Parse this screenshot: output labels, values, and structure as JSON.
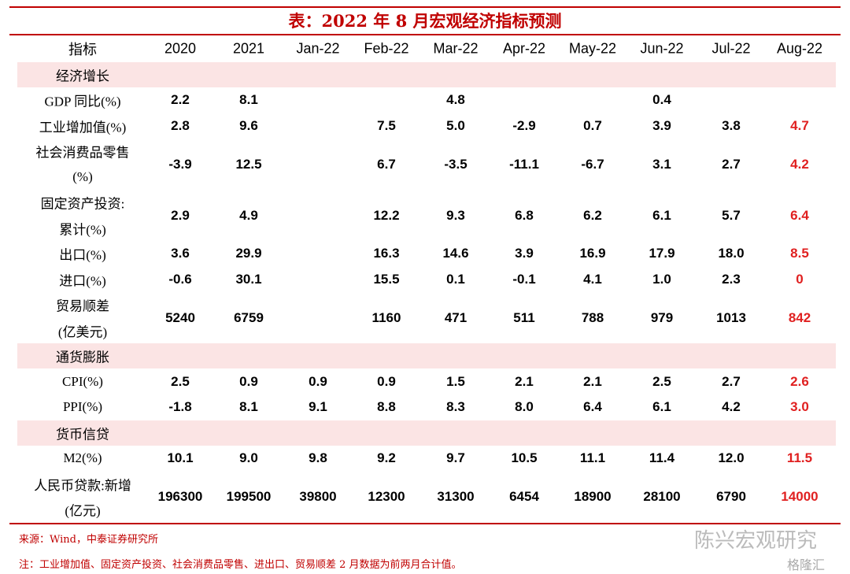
{
  "header": {
    "title": "表：2022 年 8 月宏观经济指标预测"
  },
  "table": {
    "columns": [
      "指标",
      "2020",
      "2021",
      "Jan-22",
      "Feb-22",
      "Mar-22",
      "Apr-22",
      "May-22",
      "Jun-22",
      "Jul-22",
      "Aug-22"
    ],
    "sections": [
      {
        "title": "经济增长",
        "rows": [
          {
            "label": [
              "GDP 同比(%)"
            ],
            "values": [
              "2.2",
              "8.1",
              null,
              null,
              "4.8",
              null,
              null,
              "0.4",
              null,
              null
            ]
          },
          {
            "label": [
              "工业增加值(%)"
            ],
            "values": [
              "2.8",
              "9.6",
              null,
              "7.5",
              "5.0",
              "-2.9",
              "0.7",
              "3.9",
              "3.8",
              "4.7"
            ]
          },
          {
            "label": [
              "社会消费品零售",
              "(%)"
            ],
            "values": [
              "-3.9",
              "12.5",
              null,
              "6.7",
              "-3.5",
              "-11.1",
              "-6.7",
              "3.1",
              "2.7",
              "4.2"
            ]
          },
          {
            "label": [
              "固定资产投资:",
              "累计(%)"
            ],
            "values": [
              "2.9",
              "4.9",
              null,
              "12.2",
              "9.3",
              "6.8",
              "6.2",
              "6.1",
              "5.7",
              "6.4"
            ]
          },
          {
            "label": [
              "出口(%)"
            ],
            "values": [
              "3.6",
              "29.9",
              null,
              "16.3",
              "14.6",
              "3.9",
              "16.9",
              "17.9",
              "18.0",
              "8.5"
            ]
          },
          {
            "label": [
              "进口(%)"
            ],
            "values": [
              "-0.6",
              "30.1",
              null,
              "15.5",
              "0.1",
              "-0.1",
              "4.1",
              "1.0",
              "2.3",
              "0"
            ]
          },
          {
            "label": [
              "贸易顺差",
              "(亿美元)"
            ],
            "values": [
              "5240",
              "6759",
              null,
              "1160",
              "471",
              "511",
              "788",
              "979",
              "1013",
              "842"
            ]
          }
        ]
      },
      {
        "title": "通货膨胀",
        "rows": [
          {
            "label": [
              "CPI(%)"
            ],
            "values": [
              "2.5",
              "0.9",
              "0.9",
              "0.9",
              "1.5",
              "2.1",
              "2.1",
              "2.5",
              "2.7",
              "2.6"
            ]
          },
          {
            "label": [
              "PPI(%)"
            ],
            "values": [
              "-1.8",
              "8.1",
              "9.1",
              "8.8",
              "8.3",
              "8.0",
              "6.4",
              "6.1",
              "4.2",
              "3.0"
            ]
          }
        ]
      },
      {
        "title": "货币信贷",
        "rows": [
          {
            "label": [
              "M2(%)"
            ],
            "values": [
              "10.1",
              "9.0",
              "9.8",
              "9.2",
              "9.7",
              "10.5",
              "11.1",
              "11.4",
              "12.0",
              "11.5"
            ]
          },
          {
            "label": [
              "人民币贷款:新增",
              "(亿元)"
            ],
            "values": [
              "196300",
              "199500",
              "39800",
              "12300",
              "31300",
              "6454",
              "18900",
              "28100",
              "6790",
              "14000"
            ]
          }
        ]
      }
    ]
  },
  "footer": {
    "source": "来源：Wind，中泰证券研究所",
    "note": "注：工业增加值、固定资产投资、社会消费品零售、进出口、贸易顺差 2 月数据为前两月合计值。"
  },
  "watermark": {
    "account": "陈兴宏观研究",
    "site": "格隆汇"
  }
}
